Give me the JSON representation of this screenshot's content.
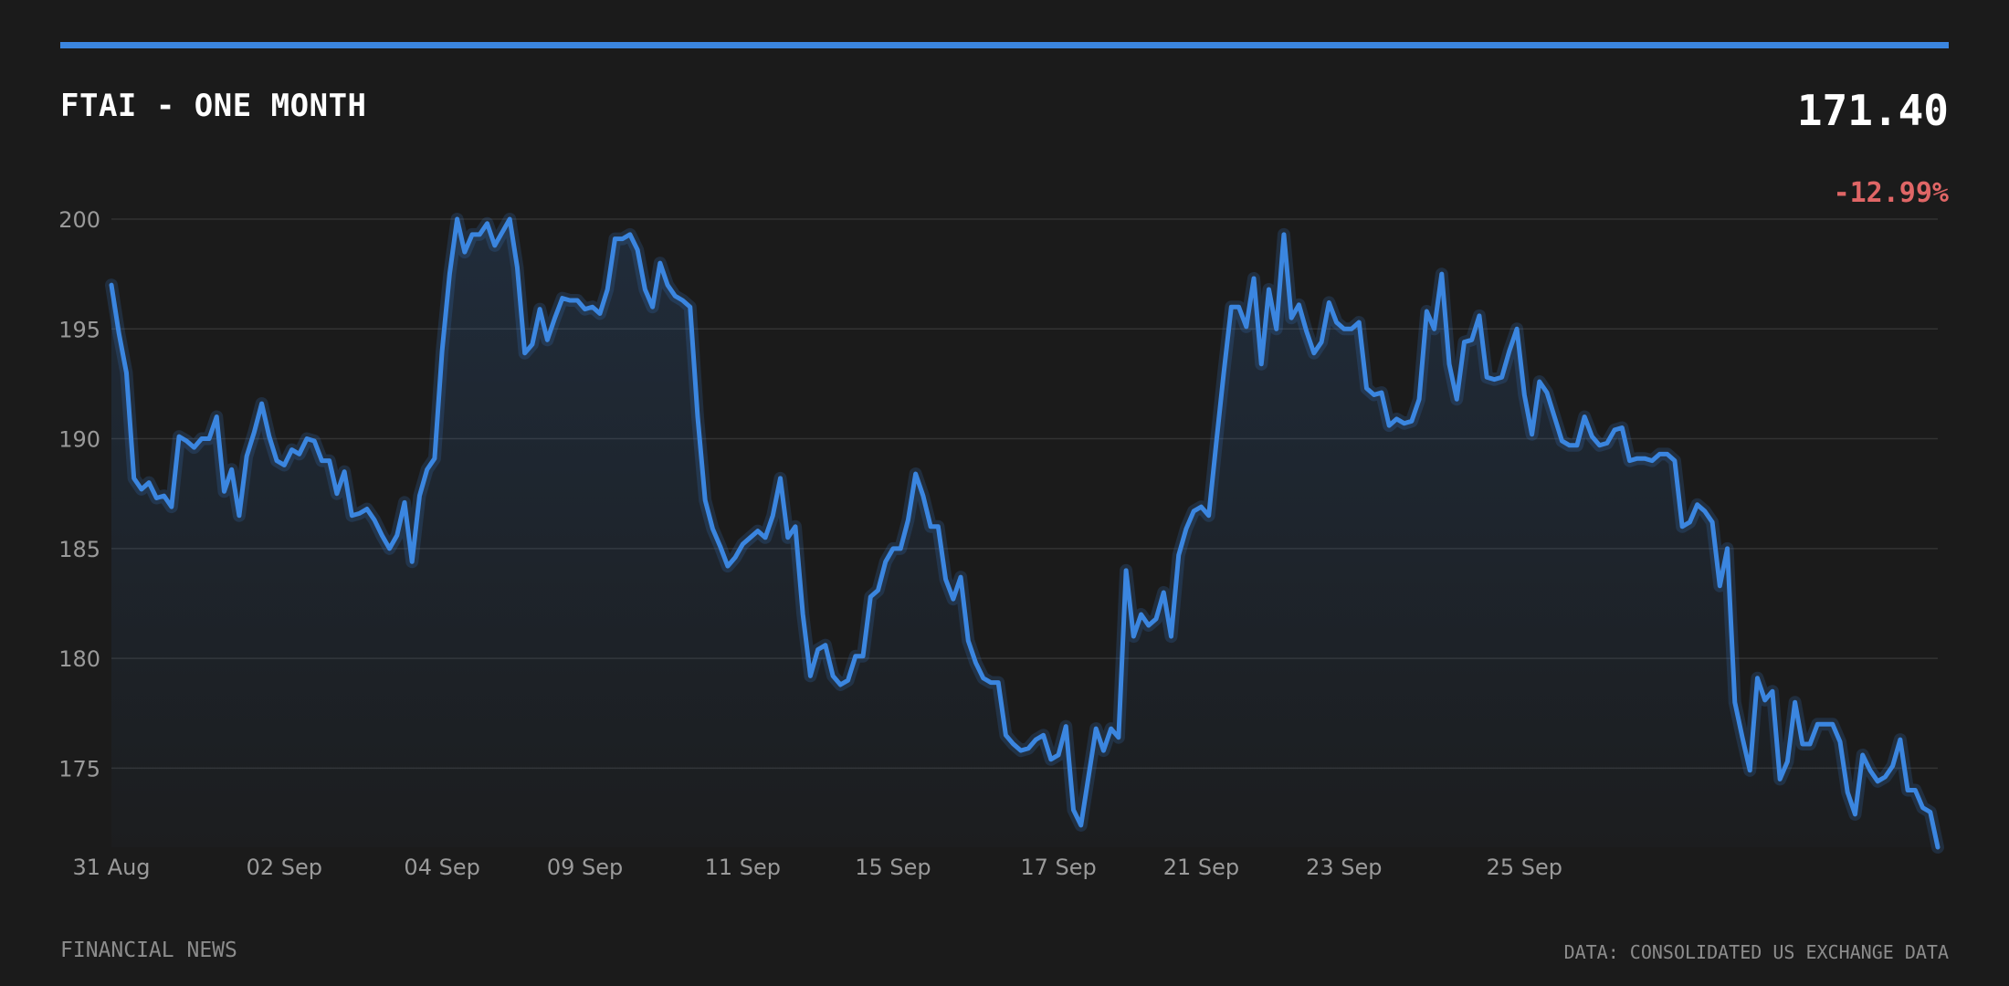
{
  "header": {
    "title": "FTAI - ONE MONTH",
    "price": "171.40",
    "change": "-12.99%"
  },
  "footer": {
    "source_left": "FINANCIAL NEWS",
    "source_right": "DATA: CONSOLIDATED US EXCHANGE DATA"
  },
  "colors": {
    "accent": "#3b86e0",
    "line": "#3b86e0",
    "negative": "#e06666",
    "background": "#1b1b1b",
    "grid": "#333333",
    "tick": "#9a9a9a"
  },
  "chart_data": {
    "type": "area",
    "ylim": [
      171.4,
      200
    ],
    "yticks": [
      175,
      180,
      185,
      190,
      195,
      200
    ],
    "xticks": [
      {
        "label": "31 Aug",
        "index": 0
      },
      {
        "label": "02 Sep",
        "index": 23
      },
      {
        "label": "04 Sep",
        "index": 44
      },
      {
        "label": "09 Sep",
        "index": 63
      },
      {
        "label": "11 Sep",
        "index": 84
      },
      {
        "label": "15 Sep",
        "index": 104
      },
      {
        "label": "17 Sep",
        "index": 126
      },
      {
        "label": "21 Sep",
        "index": 145
      },
      {
        "label": "23 Sep",
        "index": 164
      },
      {
        "label": "25 Sep",
        "index": 188
      }
    ],
    "grid": true,
    "series": [
      {
        "values": [
          197.0,
          194.8,
          193.0,
          188.2,
          187.7,
          188.0,
          187.3,
          187.4,
          186.9,
          190.1,
          189.9,
          189.6,
          190.0,
          190.0,
          191.0,
          187.6,
          188.6,
          186.5,
          189.2,
          190.3,
          191.6,
          190.1,
          189.0,
          188.8,
          189.5,
          189.3,
          190.0,
          189.9,
          189.0,
          189.0,
          187.5,
          188.5,
          186.5,
          186.6,
          186.8,
          186.3,
          185.6,
          185.0,
          185.6,
          187.1,
          184.4,
          187.4,
          188.6,
          189.1,
          194.0,
          197.5,
          200.0,
          198.5,
          199.3,
          199.3,
          199.8,
          198.8,
          199.4,
          200.0,
          197.8,
          193.9,
          194.3,
          195.9,
          194.5,
          195.5,
          196.4,
          196.3,
          196.3,
          195.9,
          196.0,
          195.7,
          196.8,
          199.1,
          199.1,
          199.3,
          198.6,
          196.8,
          196.0,
          198.0,
          197.0,
          196.5,
          196.3,
          196.0,
          191.0,
          187.2,
          185.9,
          185.1,
          184.2,
          184.6,
          185.2,
          185.5,
          185.8,
          185.5,
          186.5,
          188.2,
          185.5,
          186.0,
          182.0,
          179.2,
          180.4,
          180.6,
          179.2,
          178.8,
          179.0,
          180.1,
          180.1,
          182.8,
          183.1,
          184.4,
          185.0,
          185.0,
          186.3,
          188.4,
          187.4,
          186.0,
          186.0,
          183.6,
          182.7,
          183.7,
          180.8,
          179.8,
          179.1,
          178.9,
          178.9,
          176.5,
          176.1,
          175.8,
          175.9,
          176.3,
          176.5,
          175.4,
          175.6,
          176.9,
          173.1,
          172.4,
          174.6,
          176.8,
          175.8,
          176.8,
          176.4,
          184.0,
          181.0,
          182.0,
          181.5,
          181.8,
          183.0,
          181.0,
          184.7,
          185.9,
          186.7,
          186.9,
          186.5,
          189.8,
          193.0,
          196.0,
          196.0,
          195.1,
          197.3,
          193.4,
          196.8,
          195.0,
          199.3,
          195.5,
          196.1,
          194.9,
          193.9,
          194.4,
          196.2,
          195.3,
          195.0,
          195.0,
          195.3,
          192.3,
          192.0,
          192.1,
          190.6,
          190.9,
          190.7,
          190.8,
          191.8,
          195.8,
          195.0,
          197.5,
          193.4,
          191.8,
          194.4,
          194.5,
          195.6,
          192.8,
          192.7,
          192.8,
          194.0,
          195.0,
          192.0,
          190.2,
          192.6,
          192.1,
          191.0,
          189.9,
          189.7,
          189.7,
          191.0,
          190.1,
          189.7,
          189.8,
          190.4,
          190.5,
          189.0,
          189.1,
          189.1,
          189.0,
          189.3,
          189.3,
          189.0,
          186.0,
          186.2,
          187.0,
          186.7,
          186.2,
          183.3,
          185.0,
          178.0,
          176.4,
          174.9,
          179.1,
          178.1,
          178.5,
          174.5,
          175.3,
          178.0,
          176.1,
          176.1,
          177.0,
          177.0,
          177.0,
          176.2,
          173.9,
          172.9,
          175.6,
          174.9,
          174.4,
          174.6,
          175.1,
          176.3,
          174.0,
          174.0,
          173.2,
          173.0,
          171.4
        ]
      }
    ]
  }
}
